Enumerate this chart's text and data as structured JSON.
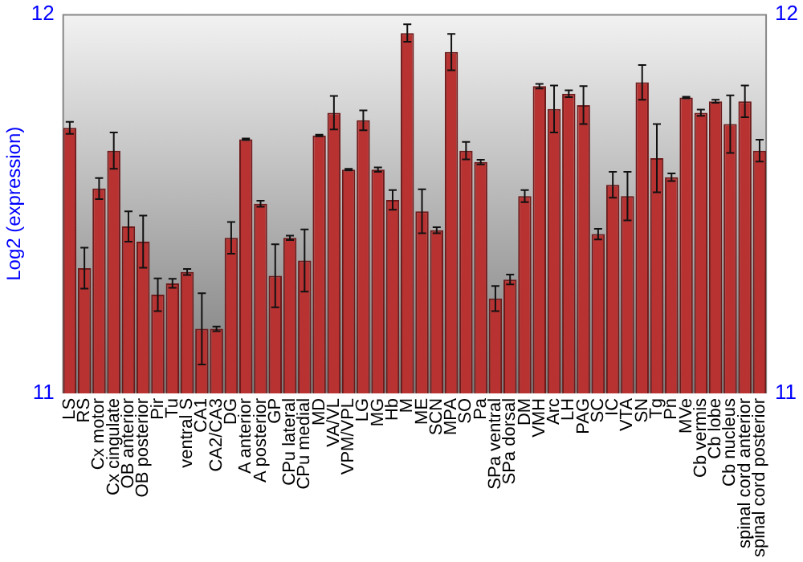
{
  "chart_data": {
    "type": "bar",
    "ylabel": "Log2 (expression)",
    "categories": [
      "LS",
      "RS",
      "Cx motor",
      "Cx cingulate",
      "OB anterior",
      "OB posterior",
      "Pir",
      "Tu",
      "ventral S",
      "CA1",
      "CA2/CA3",
      "DG",
      "A anterior",
      "A posterior",
      "GP",
      "CPu lateral",
      "CPu medial",
      "MD",
      "VA/VL",
      "VPM/VPL",
      "LG",
      "MG",
      "Hb",
      "M",
      "ME",
      "SCN",
      "MPA",
      "SO",
      "Pa",
      "SPa ventral",
      "SPa dorsal",
      "DM",
      "VMH",
      "Arc",
      "LH",
      "PAG",
      "SC",
      "IC",
      "VTA",
      "SN",
      "Tg",
      "Pn",
      "MVe",
      "Cb vermis",
      "Cb lobe",
      "Cb nucleus",
      "spinal cord anterior",
      "spinal cord posterior"
    ],
    "values": [
      11.7,
      11.33,
      11.54,
      11.64,
      11.44,
      11.4,
      11.26,
      11.29,
      11.32,
      11.17,
      11.17,
      11.41,
      11.67,
      11.5,
      11.31,
      11.41,
      11.35,
      11.68,
      11.74,
      11.59,
      11.72,
      11.59,
      11.51,
      11.95,
      11.48,
      11.43,
      11.9,
      11.64,
      11.61,
      11.25,
      11.3,
      11.52,
      11.81,
      11.75,
      11.79,
      11.76,
      11.42,
      11.55,
      11.52,
      11.82,
      11.62,
      11.57,
      11.78,
      11.74,
      11.77,
      11.71,
      11.77,
      11.64
    ],
    "errors": [
      0.016,
      0.054,
      0.028,
      0.048,
      0.04,
      0.069,
      0.043,
      0.012,
      0.008,
      0.094,
      0.006,
      0.042,
      0.002,
      0.008,
      0.083,
      0.006,
      0.082,
      0.002,
      0.044,
      0.002,
      0.026,
      0.006,
      0.026,
      0.023,
      0.058,
      0.008,
      0.048,
      0.023,
      0.006,
      0.033,
      0.013,
      0.016,
      0.006,
      0.062,
      0.009,
      0.05,
      0.014,
      0.034,
      0.064,
      0.046,
      0.09,
      0.01,
      0.002,
      0.008,
      0.004,
      0.076,
      0.042,
      0.029
    ],
    "color": "#b83232",
    "ylim": [
      11,
      12
    ],
    "yticks": [
      11,
      12
    ],
    "y2lim": [
      11,
      12
    ],
    "y2ticks": [
      11,
      12
    ],
    "grid": false,
    "legend": false
  }
}
